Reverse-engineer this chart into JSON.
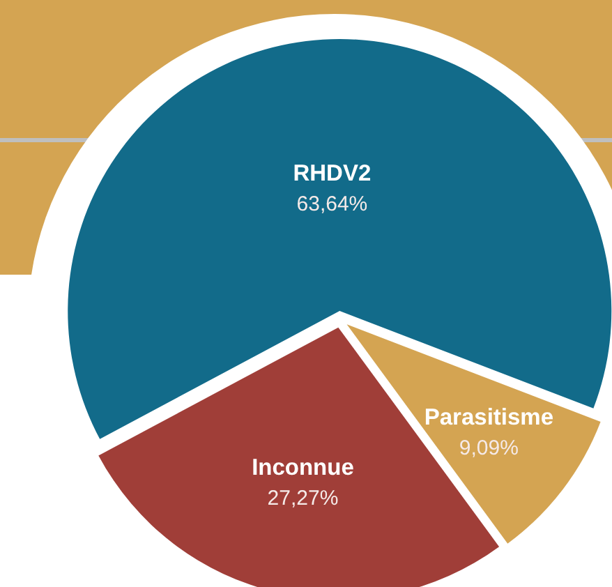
{
  "chart_data": {
    "type": "pie",
    "categories": [
      "RHDV2",
      "Parasitisme",
      "Inconnue"
    ],
    "values": [
      63.64,
      9.09,
      27.27
    ],
    "value_labels": [
      "63,64%",
      "9,09%",
      "27,27%"
    ],
    "colors": [
      "#126b8a",
      "#d4a452",
      "#a03e38"
    ]
  }
}
